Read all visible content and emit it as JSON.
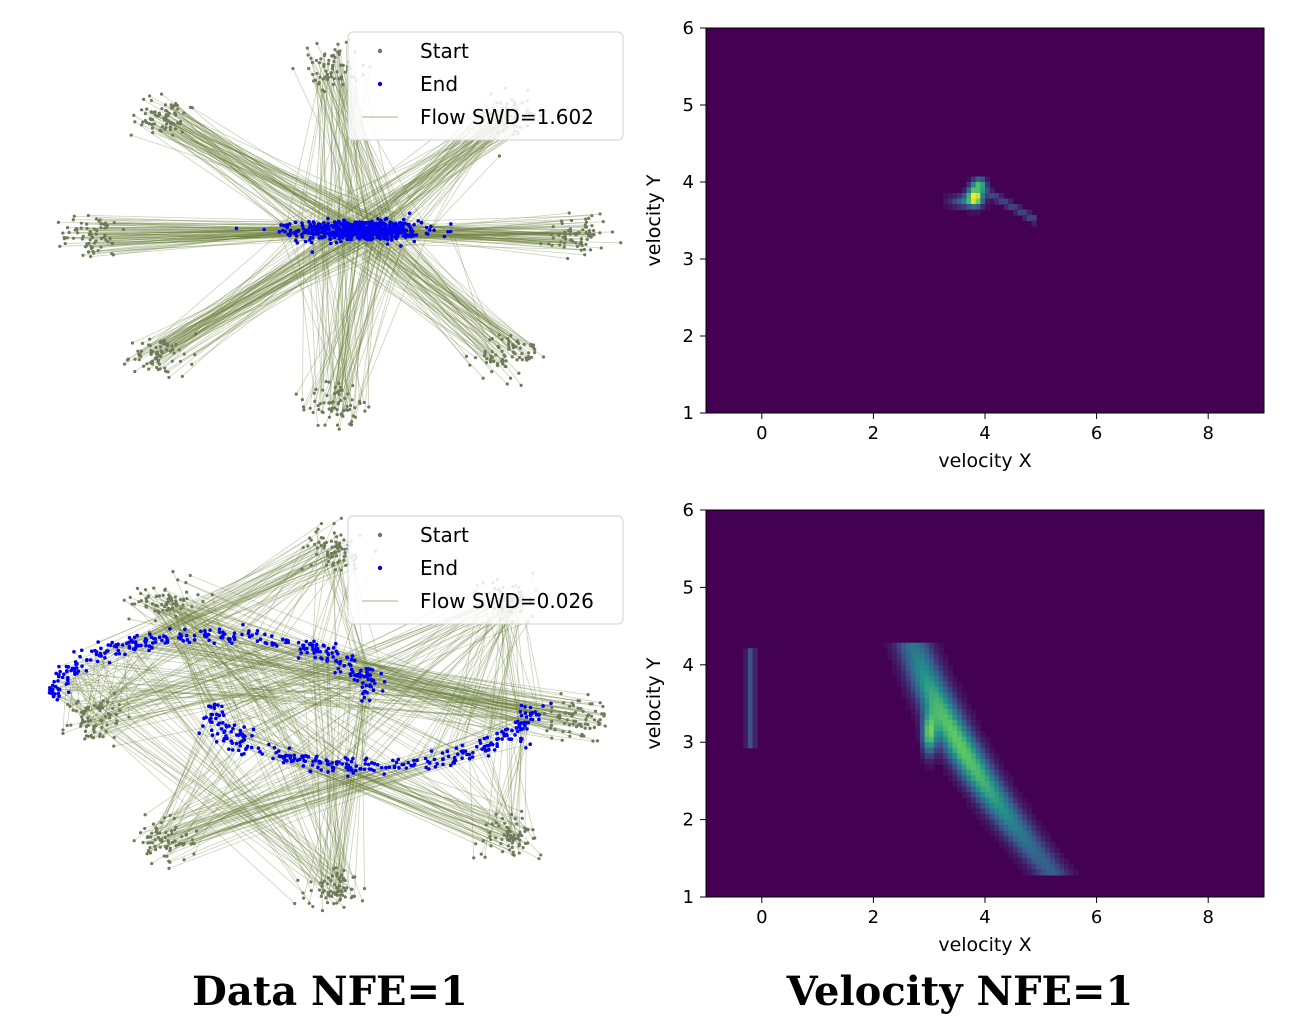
{
  "captions": {
    "left": "Data NFE=1",
    "right": "Velocity NFE=1"
  },
  "colors": {
    "start": "#6e7a5a",
    "end": "#0000ee",
    "flow": "#6b7f3a",
    "heat_low": "#440154",
    "heat_mid": "#21918c",
    "heat_high": "#fde725"
  },
  "chart_data": [
    {
      "type": "scatter",
      "panel": "top-left",
      "axes_visible": false,
      "legend": {
        "placement": "top-right",
        "entries": [
          {
            "label": "Start",
            "marker": "dot",
            "color": "#6e7a5a"
          },
          {
            "label": "End",
            "marker": "dot",
            "color": "#0000ee"
          },
          {
            "label": "Flow SWD=1.602",
            "marker": "line",
            "color": "#6b7f3a"
          }
        ]
      },
      "start_modes": 8,
      "start_radius": 4.0,
      "end_distribution": "tight blob near center",
      "end_center": [
        0.4,
        0.1
      ],
      "end_spread": [
        0.5,
        0.12
      ]
    },
    {
      "type": "heatmap",
      "panel": "top-right",
      "xlabel": "velocity X",
      "ylabel": "velocity Y",
      "xlim": [
        -1,
        9
      ],
      "ylim": [
        1,
        6
      ],
      "xticks": [
        "0",
        "2",
        "4",
        "6",
        "8"
      ],
      "yticks": [
        "1",
        "2",
        "3",
        "4",
        "5",
        "6"
      ],
      "grid": false,
      "hot_region": "small wedge centered near (3.8, 3.8)"
    },
    {
      "type": "scatter",
      "panel": "bottom-left",
      "axes_visible": false,
      "legend": {
        "placement": "top-right",
        "entries": [
          {
            "label": "Start",
            "marker": "dot",
            "color": "#6e7a5a"
          },
          {
            "label": "End",
            "marker": "dot",
            "color": "#0000ee"
          },
          {
            "label": "Flow SWD=0.026",
            "marker": "line",
            "color": "#6b7f3a"
          }
        ]
      },
      "start_modes": 8,
      "start_radius": 4.0,
      "end_distribution": "two-moons shape"
    },
    {
      "type": "heatmap",
      "panel": "bottom-right",
      "xlabel": "velocity X",
      "ylabel": "velocity Y",
      "xlim": [
        -1,
        9
      ],
      "ylim": [
        1,
        6
      ],
      "xticks": [
        "0",
        "2",
        "4",
        "6",
        "8"
      ],
      "yticks": [
        "1",
        "2",
        "3",
        "4",
        "5",
        "6"
      ],
      "grid": false,
      "hot_region": "curved band from (2.8, 4.0) to (4.8, 1.4), peak near (3.0, 3.0); faint strip near x=0"
    }
  ]
}
